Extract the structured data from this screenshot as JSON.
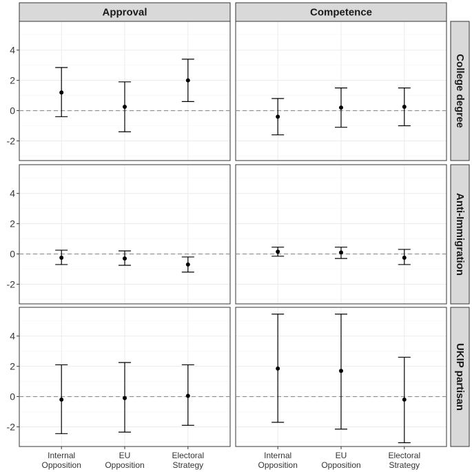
{
  "chart_data": {
    "type": "scatter",
    "subtype": "point-with-error-bars, faceted grid",
    "columns": [
      "Approval",
      "Competence"
    ],
    "rows": [
      "College degree",
      "Anti-Immigration",
      "UKIP partisan"
    ],
    "categories": [
      [
        "Internal",
        "Opposition"
      ],
      [
        "EU",
        "Opposition"
      ],
      [
        "Electoral",
        "Strategy"
      ]
    ],
    "y_ticks": [
      -2,
      0,
      2,
      4
    ],
    "ylim": [
      -3.3,
      5.9
    ],
    "reference_line_y": 0,
    "grid": true,
    "panels": [
      {
        "row": "College degree",
        "column": "Approval",
        "estimates": [
          1.2,
          0.25,
          2.0
        ],
        "lower": [
          -0.4,
          -1.4,
          0.6
        ],
        "upper": [
          2.85,
          1.9,
          3.4
        ]
      },
      {
        "row": "College degree",
        "column": "Competence",
        "estimates": [
          -0.4,
          0.2,
          0.25
        ],
        "lower": [
          -1.6,
          -1.1,
          -1.0
        ],
        "upper": [
          0.8,
          1.5,
          1.5
        ]
      },
      {
        "row": "Anti-Immigration",
        "column": "Approval",
        "estimates": [
          -0.25,
          -0.3,
          -0.7
        ],
        "lower": [
          -0.7,
          -0.75,
          -1.2
        ],
        "upper": [
          0.25,
          0.2,
          -0.2
        ]
      },
      {
        "row": "Anti-Immigration",
        "column": "Competence",
        "estimates": [
          0.15,
          0.1,
          -0.25
        ],
        "lower": [
          -0.15,
          -0.3,
          -0.7
        ],
        "upper": [
          0.45,
          0.45,
          0.3
        ]
      },
      {
        "row": "UKIP partisan",
        "column": "Approval",
        "estimates": [
          -0.2,
          -0.1,
          0.05
        ],
        "lower": [
          -2.45,
          -2.35,
          -1.9
        ],
        "upper": [
          2.1,
          2.25,
          2.1
        ]
      },
      {
        "row": "UKIP partisan",
        "column": "Competence",
        "estimates": [
          1.85,
          1.7,
          -0.2
        ],
        "lower": [
          -1.7,
          -2.15,
          -3.05
        ],
        "upper": [
          5.45,
          5.45,
          2.6
        ]
      }
    ]
  }
}
